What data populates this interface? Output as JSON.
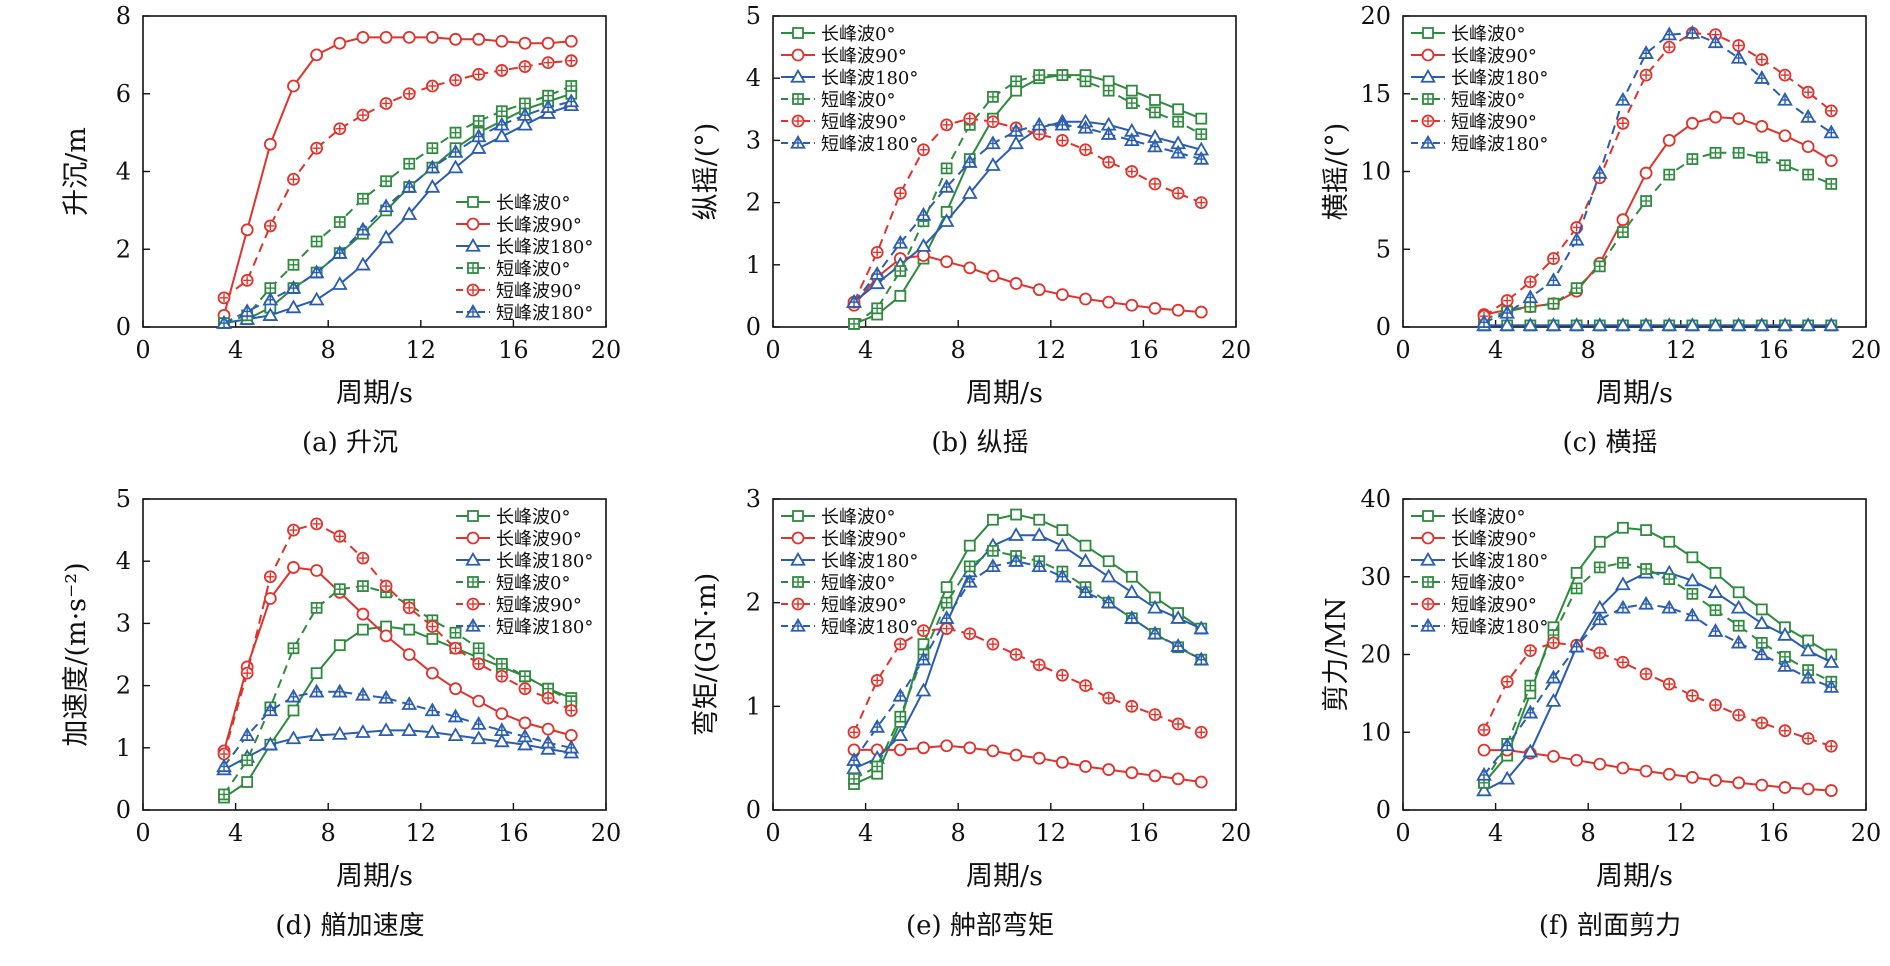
{
  "style": {
    "colors": {
      "green": "#2e8b3e",
      "red": "#e0332c",
      "blue": "#2a5db0"
    },
    "series_styles": [
      {
        "color": "green",
        "marker": "square",
        "dashed": false
      },
      {
        "color": "red",
        "marker": "circle",
        "dashed": false
      },
      {
        "color": "blue",
        "marker": "triangle",
        "dashed": false
      },
      {
        "color": "green",
        "marker": "square",
        "dashed": true,
        "crossed": true
      },
      {
        "color": "red",
        "marker": "circle",
        "dashed": true,
        "crossed": true
      },
      {
        "color": "blue",
        "marker": "triangle",
        "dashed": true,
        "crossed": true
      }
    ]
  },
  "chart_data": [
    {
      "type": "line",
      "caption": "(a) 升沉",
      "xlabel": "周期/s",
      "ylabel": "升沉/m",
      "xlim": [
        0,
        20
      ],
      "ylim": [
        0,
        8
      ],
      "yticks": [
        0,
        2,
        4,
        6,
        8
      ],
      "xticks": [
        0,
        4,
        8,
        12,
        16,
        20
      ],
      "legend_position": "bottom-right",
      "grid": false,
      "x": [
        3.5,
        4.5,
        5.5,
        6.5,
        7.5,
        8.5,
        9.5,
        10.5,
        11.5,
        12.5,
        13.5,
        14.5,
        15.5,
        16.5,
        17.5,
        18.5
      ],
      "series": [
        {
          "name": "长峰波0°",
          "values": [
            0.1,
            0.2,
            0.5,
            1.0,
            1.4,
            1.9,
            2.4,
            3.0,
            3.6,
            4.1,
            4.6,
            5.0,
            5.3,
            5.6,
            5.8,
            6.0
          ]
        },
        {
          "name": "长峰波90°",
          "values": [
            0.3,
            2.5,
            4.7,
            6.2,
            7.0,
            7.3,
            7.45,
            7.45,
            7.45,
            7.45,
            7.4,
            7.4,
            7.35,
            7.3,
            7.3,
            7.35
          ]
        },
        {
          "name": "长峰波180°",
          "values": [
            0.1,
            0.2,
            0.3,
            0.5,
            0.7,
            1.1,
            1.6,
            2.3,
            2.9,
            3.6,
            4.1,
            4.6,
            4.9,
            5.2,
            5.5,
            5.7
          ]
        },
        {
          "name": "短峰波0°",
          "values": [
            0.1,
            0.3,
            1.0,
            1.6,
            2.2,
            2.7,
            3.3,
            3.75,
            4.2,
            4.6,
            5.0,
            5.3,
            5.55,
            5.75,
            5.95,
            6.2
          ]
        },
        {
          "name": "短峰波90°",
          "values": [
            0.75,
            1.2,
            2.6,
            3.8,
            4.6,
            5.1,
            5.45,
            5.75,
            6.0,
            6.2,
            6.35,
            6.5,
            6.6,
            6.7,
            6.8,
            6.85
          ]
        },
        {
          "name": "短峰波180°",
          "values": [
            0.1,
            0.4,
            0.7,
            1.0,
            1.4,
            1.9,
            2.5,
            3.1,
            3.6,
            4.1,
            4.5,
            4.9,
            5.2,
            5.45,
            5.65,
            5.8
          ]
        }
      ]
    },
    {
      "type": "line",
      "caption": "(b) 纵摇",
      "xlabel": "周期/s",
      "ylabel": "纵摇/(°)",
      "xlim": [
        0,
        20
      ],
      "ylim": [
        0,
        5
      ],
      "yticks": [
        0,
        1,
        2,
        3,
        4,
        5
      ],
      "xticks": [
        0,
        4,
        8,
        12,
        16,
        20
      ],
      "legend_position": "top-left",
      "grid": false,
      "x": [
        3.5,
        4.5,
        5.5,
        6.5,
        7.5,
        8.5,
        9.5,
        10.5,
        11.5,
        12.5,
        13.5,
        14.5,
        15.5,
        16.5,
        17.5,
        18.5
      ],
      "series": [
        {
          "name": "长峰波0°",
          "values": [
            0.05,
            0.2,
            0.5,
            1.1,
            1.85,
            2.7,
            3.35,
            3.8,
            4.0,
            4.05,
            4.05,
            3.95,
            3.8,
            3.65,
            3.5,
            3.35
          ]
        },
        {
          "name": "长峰波90°",
          "values": [
            0.35,
            0.8,
            1.1,
            1.15,
            1.05,
            0.95,
            0.82,
            0.7,
            0.6,
            0.52,
            0.45,
            0.4,
            0.35,
            0.3,
            0.27,
            0.24
          ]
        },
        {
          "name": "长峰波180°",
          "values": [
            0.4,
            0.7,
            1.0,
            1.3,
            1.7,
            2.15,
            2.6,
            2.95,
            3.2,
            3.3,
            3.3,
            3.25,
            3.15,
            3.05,
            2.95,
            2.85
          ]
        },
        {
          "name": "短峰波0°",
          "values": [
            0.05,
            0.3,
            0.9,
            1.7,
            2.55,
            3.25,
            3.7,
            3.95,
            4.05,
            4.05,
            3.95,
            3.8,
            3.6,
            3.45,
            3.3,
            3.1
          ]
        },
        {
          "name": "短峰波90°",
          "values": [
            0.4,
            1.2,
            2.15,
            2.85,
            3.25,
            3.35,
            3.3,
            3.2,
            3.1,
            3.0,
            2.85,
            2.65,
            2.5,
            2.3,
            2.15,
            2.0
          ]
        },
        {
          "name": "短峰波180°",
          "values": [
            0.4,
            0.85,
            1.35,
            1.8,
            2.25,
            2.65,
            2.95,
            3.15,
            3.25,
            3.25,
            3.2,
            3.1,
            3.0,
            2.9,
            2.8,
            2.7
          ]
        }
      ]
    },
    {
      "type": "line",
      "caption": "(c) 横摇",
      "xlabel": "周期/s",
      "ylabel": "横摇/(°)",
      "xlim": [
        0,
        20
      ],
      "ylim": [
        0,
        20
      ],
      "yticks": [
        0,
        5,
        10,
        15,
        20
      ],
      "xticks": [
        0,
        4,
        8,
        12,
        16,
        20
      ],
      "legend_position": "top-left",
      "grid": false,
      "x": [
        3.5,
        4.5,
        5.5,
        6.5,
        7.5,
        8.5,
        9.5,
        10.5,
        11.5,
        12.5,
        13.5,
        14.5,
        15.5,
        16.5,
        17.5,
        18.5
      ],
      "series": [
        {
          "name": "长峰波0°",
          "values": [
            0.1,
            0.1,
            0.1,
            0.1,
            0.1,
            0.1,
            0.1,
            0.1,
            0.1,
            0.1,
            0.1,
            0.1,
            0.1,
            0.1,
            0.1,
            0.1
          ]
        },
        {
          "name": "长峰波90°",
          "values": [
            0.8,
            1.1,
            1.3,
            1.5,
            2.3,
            4.1,
            6.9,
            9.9,
            12.0,
            13.1,
            13.5,
            13.4,
            12.9,
            12.3,
            11.6,
            10.7
          ]
        },
        {
          "name": "长峰波180°",
          "values": [
            0.1,
            0.1,
            0.1,
            0.1,
            0.1,
            0.1,
            0.1,
            0.1,
            0.1,
            0.1,
            0.1,
            0.1,
            0.1,
            0.1,
            0.1,
            0.1
          ]
        },
        {
          "name": "短峰波0°",
          "values": [
            0.5,
            1.0,
            1.3,
            1.5,
            2.5,
            3.9,
            6.1,
            8.1,
            9.8,
            10.8,
            11.2,
            11.2,
            10.9,
            10.4,
            9.8,
            9.2
          ]
        },
        {
          "name": "短峰波90°",
          "values": [
            0.7,
            1.7,
            2.9,
            4.4,
            6.4,
            9.6,
            13.1,
            16.2,
            18.0,
            18.9,
            18.8,
            18.1,
            17.2,
            16.2,
            15.1,
            13.9
          ]
        },
        {
          "name": "短峰波180°",
          "values": [
            0.3,
            0.9,
            1.9,
            3.0,
            5.6,
            9.9,
            14.6,
            17.6,
            18.8,
            18.9,
            18.3,
            17.3,
            16.0,
            14.6,
            13.5,
            12.5
          ]
        }
      ]
    },
    {
      "type": "line",
      "caption": "(d) 艏加速度",
      "xlabel": "周期/s",
      "ylabel": "加速度/(m·s⁻²)",
      "xlim": [
        0,
        20
      ],
      "ylim": [
        0,
        5
      ],
      "yticks": [
        0,
        1,
        2,
        3,
        4,
        5
      ],
      "xticks": [
        0,
        4,
        8,
        12,
        16,
        20
      ],
      "legend_position": "top-right",
      "grid": false,
      "x": [
        3.5,
        4.5,
        5.5,
        6.5,
        7.5,
        8.5,
        9.5,
        10.5,
        11.5,
        12.5,
        13.5,
        14.5,
        15.5,
        16.5,
        17.5,
        18.5
      ],
      "series": [
        {
          "name": "长峰波0°",
          "values": [
            0.2,
            0.45,
            1.05,
            1.6,
            2.2,
            2.65,
            2.9,
            2.95,
            2.9,
            2.75,
            2.6,
            2.45,
            2.3,
            2.15,
            1.95,
            1.8
          ]
        },
        {
          "name": "长峰波90°",
          "values": [
            0.95,
            2.3,
            3.4,
            3.9,
            3.85,
            3.5,
            3.15,
            2.8,
            2.5,
            2.2,
            1.95,
            1.75,
            1.55,
            1.4,
            1.3,
            1.2
          ]
        },
        {
          "name": "长峰波180°",
          "values": [
            0.65,
            0.85,
            1.05,
            1.15,
            1.2,
            1.22,
            1.25,
            1.28,
            1.28,
            1.25,
            1.2,
            1.15,
            1.1,
            1.05,
            0.98,
            0.92
          ]
        },
        {
          "name": "短峰波0°",
          "values": [
            0.25,
            0.8,
            1.65,
            2.6,
            3.25,
            3.55,
            3.6,
            3.5,
            3.3,
            3.05,
            2.85,
            2.6,
            2.35,
            2.15,
            1.95,
            1.75
          ]
        },
        {
          "name": "短峰波90°",
          "values": [
            0.9,
            2.2,
            3.75,
            4.5,
            4.6,
            4.4,
            4.05,
            3.6,
            3.25,
            2.95,
            2.6,
            2.35,
            2.15,
            1.95,
            1.8,
            1.6
          ]
        },
        {
          "name": "短峰波180°",
          "values": [
            0.7,
            1.2,
            1.6,
            1.82,
            1.9,
            1.9,
            1.85,
            1.8,
            1.7,
            1.6,
            1.5,
            1.38,
            1.28,
            1.18,
            1.08,
            1.0
          ]
        }
      ]
    },
    {
      "type": "line",
      "caption": "(e) 舯部弯矩",
      "xlabel": "周期/s",
      "ylabel": "弯矩/(GN·m)",
      "xlim": [
        0,
        20
      ],
      "ylim": [
        0,
        3
      ],
      "yticks": [
        0,
        1,
        2,
        3
      ],
      "xticks": [
        0,
        4,
        8,
        12,
        16,
        20
      ],
      "legend_position": "top-left",
      "grid": false,
      "x": [
        3.5,
        4.5,
        5.5,
        6.5,
        7.5,
        8.5,
        9.5,
        10.5,
        11.5,
        12.5,
        13.5,
        14.5,
        15.5,
        16.5,
        17.5,
        18.5
      ],
      "series": [
        {
          "name": "长峰波0°",
          "values": [
            0.25,
            0.35,
            0.85,
            1.6,
            2.15,
            2.55,
            2.8,
            2.85,
            2.8,
            2.7,
            2.55,
            2.4,
            2.25,
            2.05,
            1.9,
            1.75
          ]
        },
        {
          "name": "长峰波90°",
          "values": [
            0.58,
            0.58,
            0.58,
            0.6,
            0.62,
            0.6,
            0.57,
            0.53,
            0.5,
            0.46,
            0.42,
            0.39,
            0.36,
            0.33,
            0.3,
            0.27
          ]
        },
        {
          "name": "长峰波180°",
          "values": [
            0.4,
            0.5,
            0.72,
            1.15,
            1.8,
            2.3,
            2.55,
            2.65,
            2.65,
            2.55,
            2.4,
            2.25,
            2.1,
            1.95,
            1.85,
            1.75
          ]
        },
        {
          "name": "短峰波0°",
          "values": [
            0.3,
            0.42,
            0.9,
            1.5,
            2.0,
            2.35,
            2.5,
            2.45,
            2.4,
            2.3,
            2.15,
            2.0,
            1.85,
            1.7,
            1.57,
            1.45
          ]
        },
        {
          "name": "短峰波90°",
          "values": [
            0.75,
            1.25,
            1.6,
            1.73,
            1.75,
            1.7,
            1.6,
            1.5,
            1.4,
            1.3,
            1.2,
            1.08,
            1.0,
            0.92,
            0.83,
            0.75
          ]
        },
        {
          "name": "短峰波180°",
          "values": [
            0.48,
            0.8,
            1.1,
            1.45,
            1.85,
            2.2,
            2.35,
            2.4,
            2.35,
            2.25,
            2.1,
            2.0,
            1.85,
            1.7,
            1.58,
            1.45
          ]
        }
      ]
    },
    {
      "type": "line",
      "caption": "(f) 剖面剪力",
      "xlabel": "周期/s",
      "ylabel": "剪力/MN",
      "xlim": [
        0,
        20
      ],
      "ylim": [
        0,
        40
      ],
      "yticks": [
        0,
        10,
        20,
        30,
        40
      ],
      "xticks": [
        0,
        4,
        8,
        12,
        16,
        20
      ],
      "legend_position": "top-left",
      "grid": false,
      "x": [
        3.5,
        4.5,
        5.5,
        6.5,
        7.5,
        8.5,
        9.5,
        10.5,
        11.5,
        12.5,
        13.5,
        14.5,
        15.5,
        16.5,
        17.5,
        18.5
      ],
      "series": [
        {
          "name": "长峰波0°",
          "values": [
            3.5,
            7.0,
            15.0,
            23.5,
            30.5,
            34.5,
            36.3,
            36.0,
            34.5,
            32.5,
            30.5,
            28.0,
            25.8,
            23.5,
            21.8,
            20.0
          ]
        },
        {
          "name": "长峰波90°",
          "values": [
            7.7,
            7.7,
            7.3,
            6.9,
            6.4,
            5.9,
            5.4,
            5.0,
            4.6,
            4.2,
            3.8,
            3.5,
            3.2,
            2.9,
            2.7,
            2.5
          ]
        },
        {
          "name": "长峰波180°",
          "values": [
            2.5,
            4.0,
            7.5,
            14.0,
            21.0,
            26.0,
            29.0,
            30.5,
            30.5,
            29.5,
            28.0,
            26.0,
            24.0,
            22.5,
            20.5,
            19.0
          ]
        },
        {
          "name": "短峰波0°",
          "values": [
            3.5,
            8.5,
            16.0,
            22.5,
            28.5,
            31.2,
            31.8,
            31.0,
            29.7,
            27.8,
            25.7,
            23.7,
            21.5,
            19.7,
            18.0,
            16.5
          ]
        },
        {
          "name": "短峰波90°",
          "values": [
            10.3,
            16.5,
            20.5,
            21.5,
            21.2,
            20.2,
            19.0,
            17.5,
            16.2,
            14.7,
            13.5,
            12.2,
            11.2,
            10.2,
            9.2,
            8.2
          ]
        },
        {
          "name": "短峰波180°",
          "values": [
            4.5,
            8.3,
            12.5,
            17.0,
            21.0,
            24.5,
            26.0,
            26.5,
            26.0,
            25.0,
            23.0,
            21.5,
            20.0,
            18.5,
            17.0,
            15.8
          ]
        }
      ]
    }
  ]
}
